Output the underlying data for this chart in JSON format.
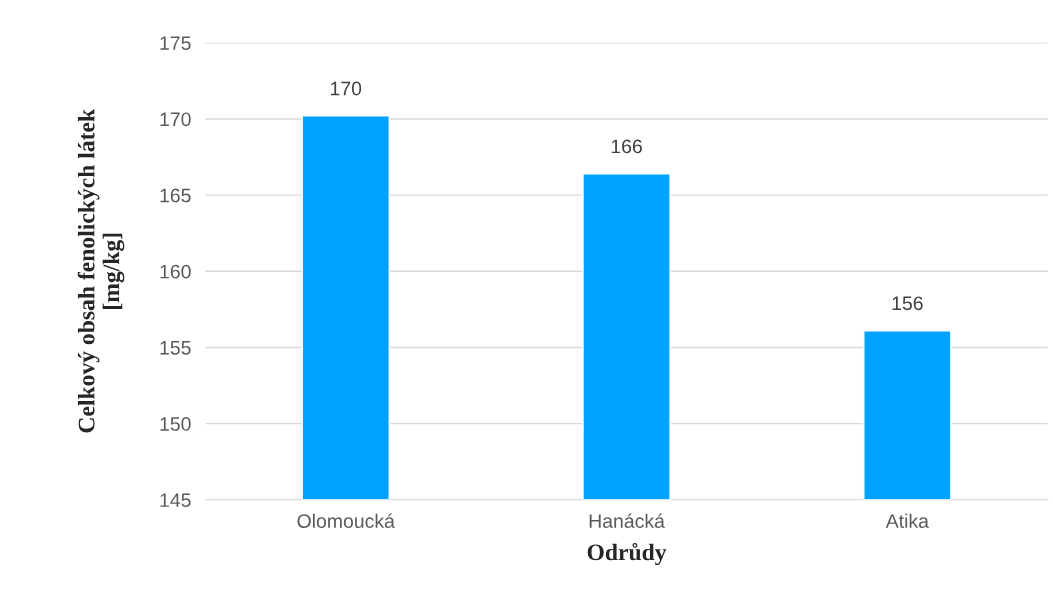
{
  "chart_data": {
    "type": "bar",
    "xlabel": "Odrůdy",
    "ylabel": "Celkový obsah fenolických látek\n[mg/kg]",
    "categories": [
      "Olomoucká",
      "Hanácká",
      "Atika"
    ],
    "values": [
      170.2,
      166.4,
      156.1
    ],
    "value_labels": [
      "170",
      "166",
      "156"
    ],
    "color": "#00a2ff",
    "ylim": [
      145,
      175
    ],
    "yticks": [
      145,
      150,
      155,
      160,
      165,
      170,
      175
    ],
    "grid": "y"
  }
}
